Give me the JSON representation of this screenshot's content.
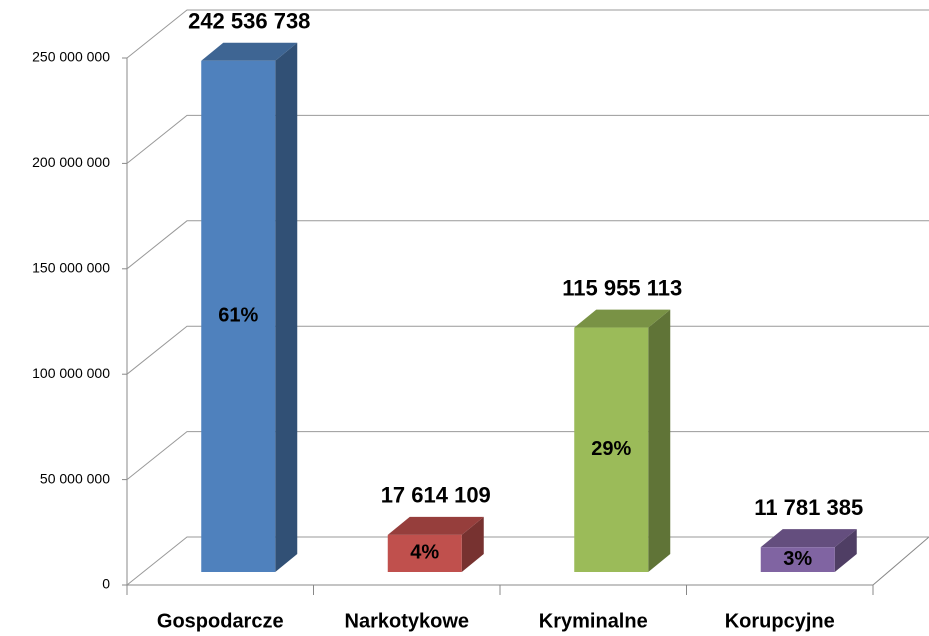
{
  "chart_data": {
    "type": "bar3d",
    "categories": [
      "Gospodarcze",
      "Narkotykowe",
      "Kryminalne",
      "Korupcyjne"
    ],
    "values": [
      242536738,
      17614109,
      115955113,
      11781385
    ],
    "value_labels": [
      "242 536 738",
      "17 614 109",
      "115 955 113",
      "11 781 385"
    ],
    "percentages": {
      "values": [
        61,
        4,
        29,
        3
      ],
      "value_labels": [
        "61%",
        "4%",
        "29%",
        "3%"
      ]
    },
    "colors": [
      "#4f81bd",
      "#c0504d",
      "#9bbb59",
      "#8064a2"
    ],
    "ylim": [
      0,
      250000000
    ],
    "yticks": [
      {
        "value": 0,
        "label": "0"
      },
      {
        "value": 50000000,
        "label": "50 000 000"
      },
      {
        "value": 100000000,
        "label": "100 000 000"
      },
      {
        "value": 150000000,
        "label": "150 000 000"
      },
      {
        "value": 200000000,
        "label": "200 000 000"
      },
      {
        "value": 250000000,
        "label": "250 000 000"
      }
    ],
    "grid": true
  }
}
